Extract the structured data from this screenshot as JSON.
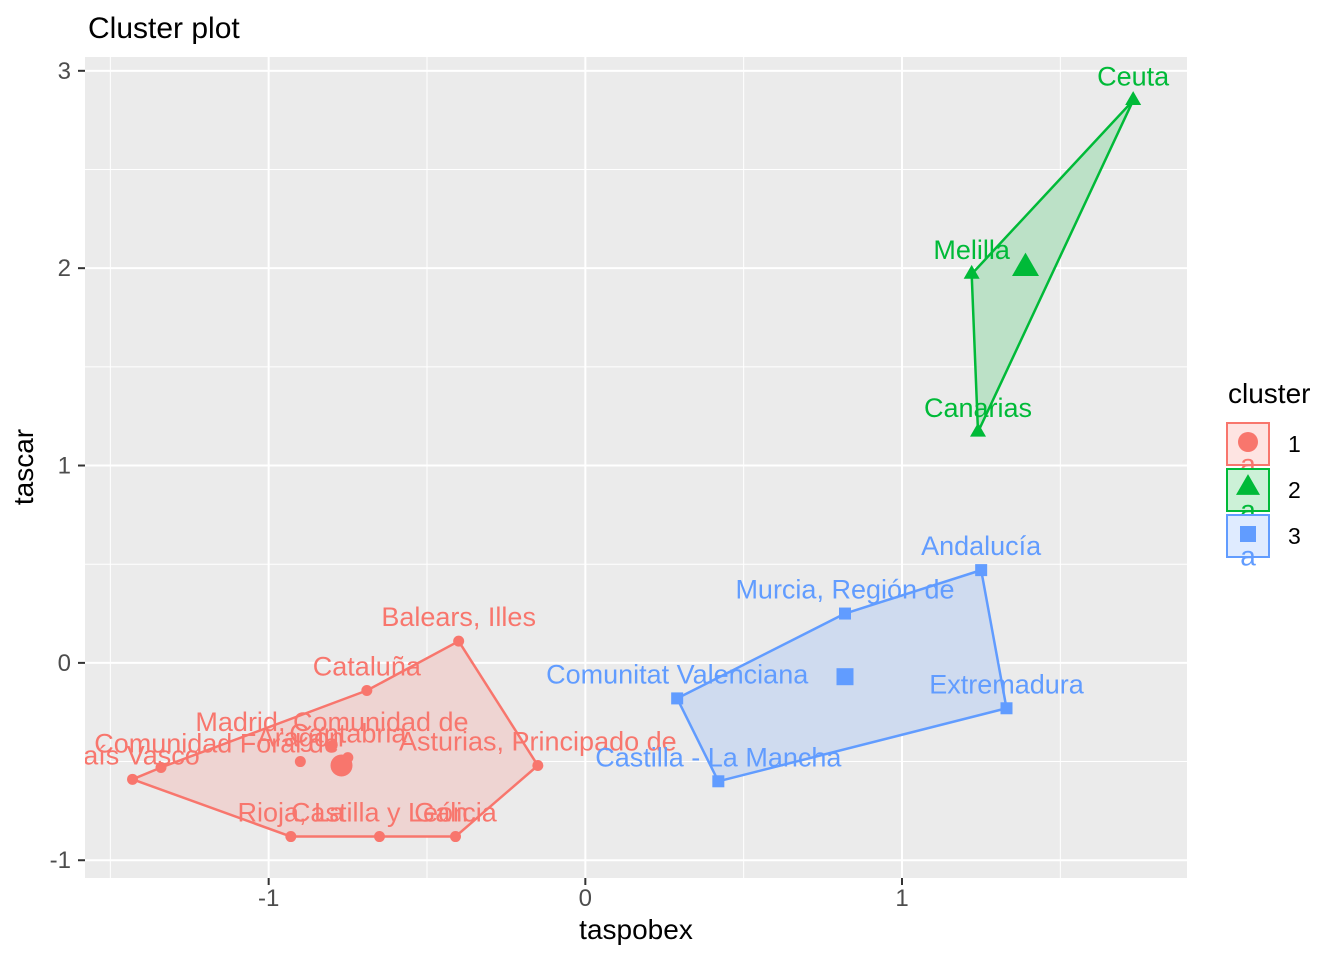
{
  "page_title": "Cluster plot",
  "axes": {
    "x": {
      "title": "taspobex",
      "tick_labels": [
        "-1",
        "0",
        "1"
      ]
    },
    "y": {
      "title": "tascar",
      "tick_labels": [
        "-1",
        "0",
        "1",
        "2",
        "3"
      ]
    }
  },
  "legend": {
    "title": "cluster",
    "text_glyph": "a",
    "entries": [
      {
        "label": "1",
        "color": "#F8766D",
        "shape": "circle"
      },
      {
        "label": "2",
        "color": "#00BA38",
        "shape": "triangle"
      },
      {
        "label": "3",
        "color": "#619CFF",
        "shape": "square"
      }
    ]
  },
  "style_colors": {
    "panel_bg": "#EBEBEB",
    "grid": "#FFFFFF",
    "tick_mark": "#333333",
    "tick_text": "#4D4D4D",
    "title_text": "#000000"
  },
  "chart_data": {
    "type": "scatter",
    "title": "Cluster plot",
    "xlabel": "taspobex",
    "ylabel": "tascar",
    "xlim": [
      -1.58,
      1.9
    ],
    "ylim": [
      -1.09,
      3.07
    ],
    "x_major_ticks": [
      -1,
      0,
      1
    ],
    "x_minor_ticks": [
      -1.5,
      -0.5,
      0.5,
      1.5
    ],
    "y_major_ticks": [
      -1,
      0,
      1,
      2,
      3
    ],
    "y_minor_ticks": [
      -0.5,
      0.5,
      1.5,
      2.5
    ],
    "grid": true,
    "legend_position": "right",
    "hull_fill_alpha": 0.2,
    "clusters": [
      {
        "id": "1",
        "color": "#F8766D",
        "marker": "circle",
        "points": [
          {
            "label": "País Vasco",
            "x": -1.43,
            "y": -0.59
          },
          {
            "label": "Navarra, Comunidad Foral de",
            "x": -1.34,
            "y": -0.53
          },
          {
            "label": "Madrid, Comunidad de",
            "x": -0.8,
            "y": -0.42
          },
          {
            "label": "Aragón",
            "x": -0.9,
            "y": -0.5
          },
          {
            "label": "Cantabria",
            "x": -0.75,
            "y": -0.48
          },
          {
            "label": "Cataluña",
            "x": -0.69,
            "y": -0.14
          },
          {
            "label": "Balears, Illes",
            "x": -0.4,
            "y": 0.11
          },
          {
            "label": "Asturias, Principado de",
            "x": -0.15,
            "y": -0.52
          },
          {
            "label": "Rioja, La",
            "x": -0.93,
            "y": -0.88
          },
          {
            "label": "Castilla y León",
            "x": -0.65,
            "y": -0.88
          },
          {
            "label": "Galicia",
            "x": -0.41,
            "y": -0.88
          }
        ],
        "centroid": {
          "x": -0.77,
          "y": -0.52
        },
        "hull": [
          0,
          1,
          5,
          6,
          7,
          10,
          9,
          8
        ]
      },
      {
        "id": "2",
        "color": "#00BA38",
        "marker": "triangle",
        "points": [
          {
            "label": "Canarias",
            "x": 1.24,
            "y": 1.17
          },
          {
            "label": "Melilla",
            "x": 1.22,
            "y": 1.97
          },
          {
            "label": "Ceuta",
            "x": 1.73,
            "y": 2.85
          }
        ],
        "centroid": {
          "x": 1.39,
          "y": 2.0
        },
        "hull": [
          2,
          1,
          0
        ]
      },
      {
        "id": "3",
        "color": "#619CFF",
        "marker": "square",
        "points": [
          {
            "label": "Comunitat Valenciana",
            "x": 0.29,
            "y": -0.18
          },
          {
            "label": "Castilla - La Mancha",
            "x": 0.42,
            "y": -0.6
          },
          {
            "label": "Murcia, Región de",
            "x": 0.82,
            "y": 0.25
          },
          {
            "label": "Andalucía",
            "x": 1.25,
            "y": 0.47
          },
          {
            "label": "Extremadura",
            "x": 1.33,
            "y": -0.23
          }
        ],
        "centroid": {
          "x": 0.82,
          "y": -0.07
        },
        "hull": [
          3,
          2,
          0,
          1,
          4
        ]
      }
    ]
  }
}
